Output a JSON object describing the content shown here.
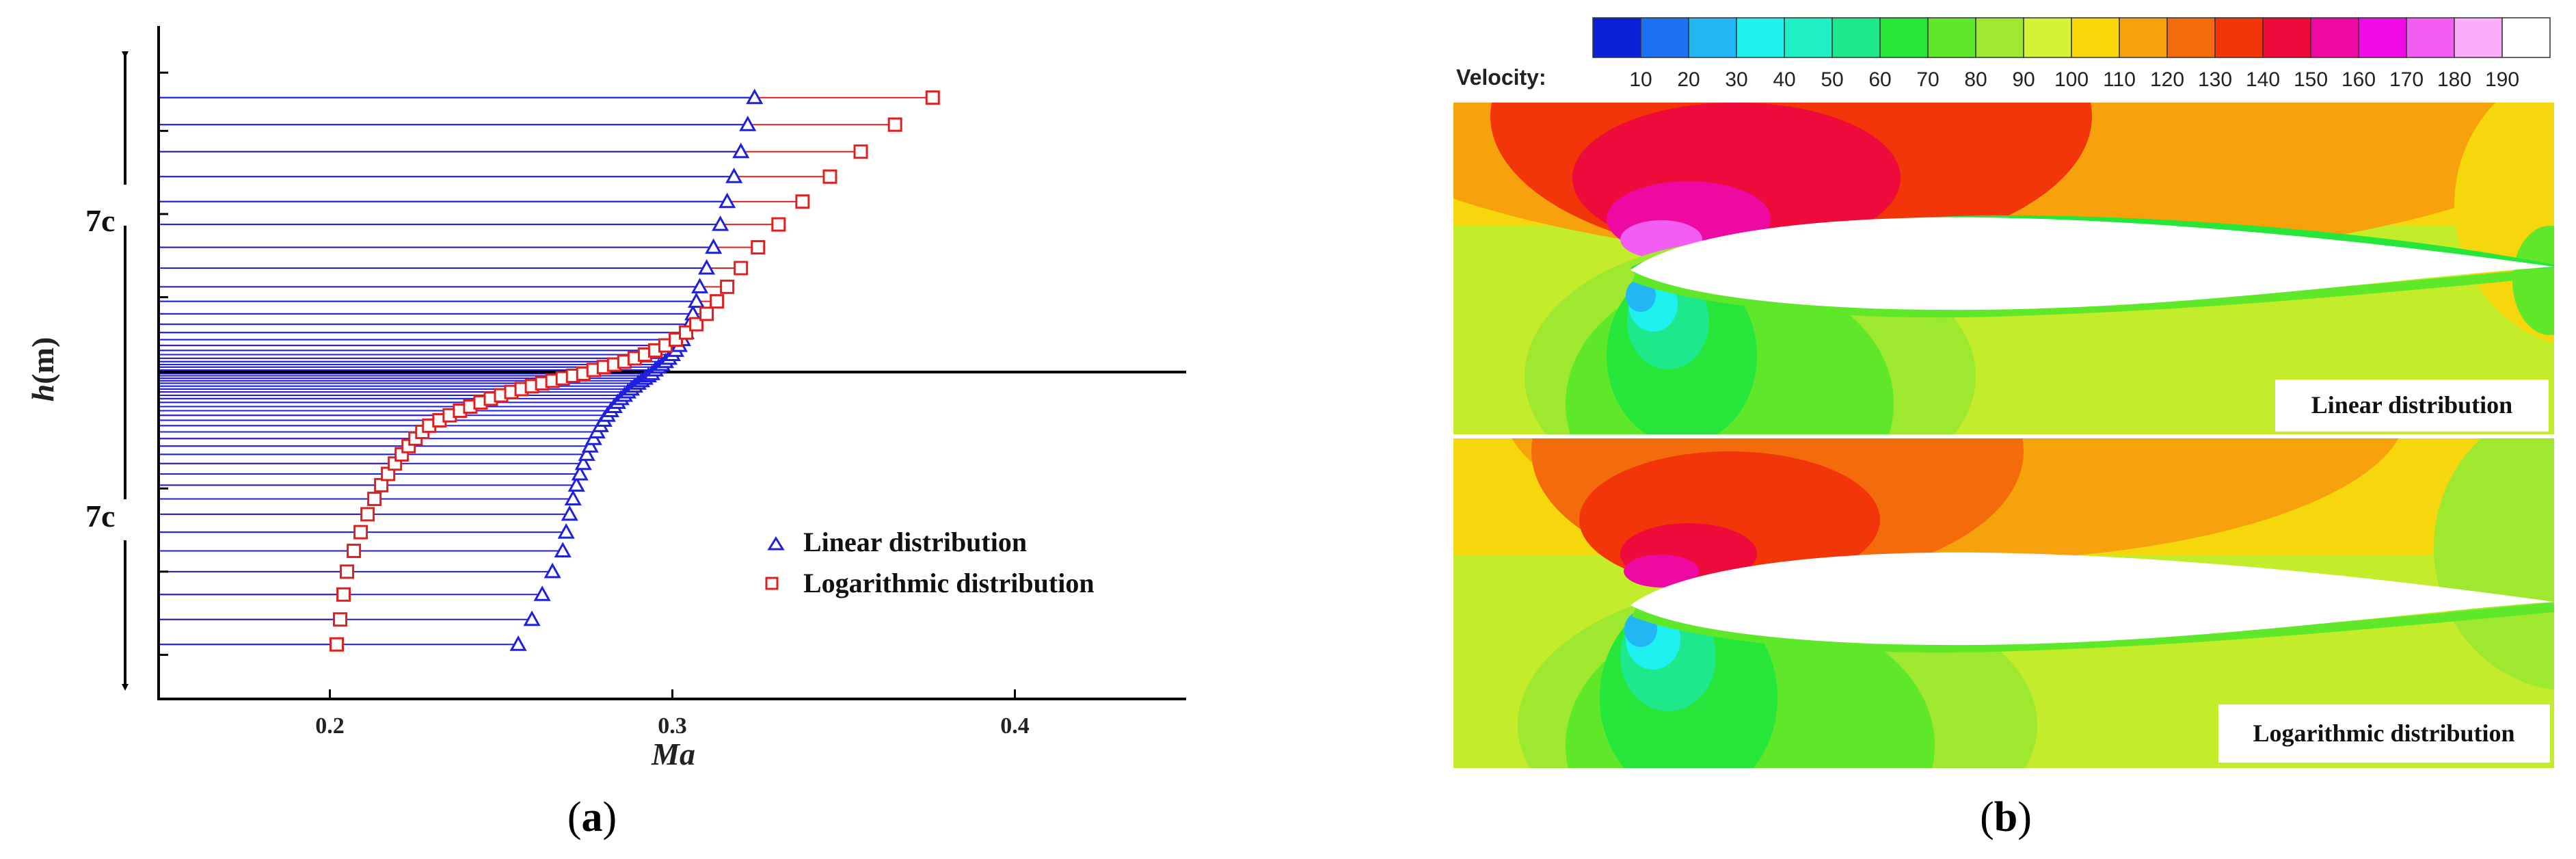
{
  "panel_a": {
    "label_open": "(",
    "label_letter": "a",
    "label_close": ")",
    "upper_span": "7c",
    "lower_span": "7c"
  },
  "panel_b": {
    "label_open": "(",
    "label_letter": "b",
    "label_close": ")",
    "colorbar_title": "Velocity:",
    "colorbar_ticks": [
      "10",
      "20",
      "30",
      "40",
      "50",
      "60",
      "70",
      "80",
      "90",
      "100",
      "110",
      "120",
      "130",
      "140",
      "150",
      "160",
      "170",
      "180",
      "190"
    ],
    "colorbar_colors": [
      "#0a1fd6",
      "#1c72f0",
      "#22b6f5",
      "#1ff0f0",
      "#1ef0c4",
      "#1ee88c",
      "#26e63a",
      "#5fe82a",
      "#9ee830",
      "#d4f236",
      "#f7d60a",
      "#f7a10c",
      "#f46b0c",
      "#f2360a",
      "#ee0a3a",
      "#ee0aa2",
      "#f00ae8",
      "#f25ef2",
      "#f8aef8",
      "#ffffff"
    ],
    "case_top": "Linear distribution",
    "case_bottom": "Logarithmic distribution"
  },
  "chart_data": {
    "type": "scatter",
    "title": "",
    "xlabel": "Ma",
    "ylabel_prefix": "h",
    "ylabel_unit": "(m)",
    "xlim": [
      0.15,
      0.45
    ],
    "ylim": [
      -7.5,
      7.5
    ],
    "xticks": [
      "0.2",
      "0.3",
      "0.4"
    ],
    "xtick_values": [
      0.2,
      0.3,
      0.4
    ],
    "legend_position": "lower-right",
    "series": [
      {
        "name": "Linear distribution",
        "marker": "triangle",
        "color": "#1f1fe0",
        "points": [
          [
            0.255,
            -6.55
          ],
          [
            0.259,
            -5.95
          ],
          [
            0.262,
            -5.35
          ],
          [
            0.265,
            -4.8
          ],
          [
            0.268,
            -4.3
          ],
          [
            0.269,
            -3.85
          ],
          [
            0.27,
            -3.42
          ],
          [
            0.271,
            -3.05
          ],
          [
            0.272,
            -2.72
          ],
          [
            0.273,
            -2.45
          ],
          [
            0.274,
            -2.2
          ],
          [
            0.275,
            -1.98
          ],
          [
            0.276,
            -1.78
          ],
          [
            0.277,
            -1.6
          ],
          [
            0.278,
            -1.44
          ],
          [
            0.279,
            -1.29
          ],
          [
            0.28,
            -1.16
          ],
          [
            0.281,
            -1.04
          ],
          [
            0.282,
            -0.93
          ],
          [
            0.283,
            -0.83
          ],
          [
            0.284,
            -0.73
          ],
          [
            0.285,
            -0.64
          ],
          [
            0.286,
            -0.56
          ],
          [
            0.287,
            -0.48
          ],
          [
            0.288,
            -0.41
          ],
          [
            0.289,
            -0.34
          ],
          [
            0.29,
            -0.27
          ],
          [
            0.291,
            -0.21
          ],
          [
            0.292,
            -0.15
          ],
          [
            0.293,
            -0.09
          ],
          [
            0.294,
            -0.04
          ],
          [
            0.295,
            0.05
          ],
          [
            0.296,
            0.12
          ],
          [
            0.297,
            0.18
          ],
          [
            0.298,
            0.25
          ],
          [
            0.299,
            0.33
          ],
          [
            0.3,
            0.42
          ],
          [
            0.301,
            0.52
          ],
          [
            0.302,
            0.64
          ],
          [
            0.303,
            0.78
          ],
          [
            0.304,
            0.95
          ],
          [
            0.305,
            1.15
          ],
          [
            0.306,
            1.4
          ],
          [
            0.307,
            1.7
          ],
          [
            0.308,
            2.05
          ],
          [
            0.31,
            2.5
          ],
          [
            0.312,
            3.0
          ],
          [
            0.314,
            3.55
          ],
          [
            0.316,
            4.1
          ],
          [
            0.318,
            4.7
          ],
          [
            0.32,
            5.3
          ],
          [
            0.322,
            5.95
          ],
          [
            0.324,
            6.6
          ]
        ]
      },
      {
        "name": "Logarithmic distribution",
        "marker": "square",
        "color": "#e01f1f",
        "points": [
          [
            0.202,
            -6.55
          ],
          [
            0.203,
            -5.95
          ],
          [
            0.204,
            -5.35
          ],
          [
            0.205,
            -4.8
          ],
          [
            0.207,
            -4.3
          ],
          [
            0.209,
            -3.85
          ],
          [
            0.211,
            -3.42
          ],
          [
            0.213,
            -3.05
          ],
          [
            0.215,
            -2.72
          ],
          [
            0.217,
            -2.45
          ],
          [
            0.219,
            -2.2
          ],
          [
            0.221,
            -1.98
          ],
          [
            0.223,
            -1.78
          ],
          [
            0.225,
            -1.6
          ],
          [
            0.227,
            -1.44
          ],
          [
            0.229,
            -1.29
          ],
          [
            0.232,
            -1.16
          ],
          [
            0.235,
            -1.04
          ],
          [
            0.238,
            -0.93
          ],
          [
            0.241,
            -0.83
          ],
          [
            0.244,
            -0.73
          ],
          [
            0.247,
            -0.64
          ],
          [
            0.25,
            -0.56
          ],
          [
            0.253,
            -0.48
          ],
          [
            0.256,
            -0.41
          ],
          [
            0.259,
            -0.34
          ],
          [
            0.262,
            -0.27
          ],
          [
            0.265,
            -0.21
          ],
          [
            0.268,
            -0.15
          ],
          [
            0.271,
            -0.09
          ],
          [
            0.274,
            -0.04
          ],
          [
            0.277,
            0.05
          ],
          [
            0.28,
            0.12
          ],
          [
            0.283,
            0.18
          ],
          [
            0.286,
            0.25
          ],
          [
            0.289,
            0.33
          ],
          [
            0.292,
            0.42
          ],
          [
            0.295,
            0.52
          ],
          [
            0.298,
            0.64
          ],
          [
            0.301,
            0.78
          ],
          [
            0.304,
            0.95
          ],
          [
            0.307,
            1.15
          ],
          [
            0.31,
            1.4
          ],
          [
            0.313,
            1.7
          ],
          [
            0.316,
            2.05
          ],
          [
            0.32,
            2.5
          ],
          [
            0.325,
            3.0
          ],
          [
            0.331,
            3.55
          ],
          [
            0.338,
            4.1
          ],
          [
            0.346,
            4.7
          ],
          [
            0.355,
            5.3
          ],
          [
            0.365,
            5.95
          ],
          [
            0.376,
            6.6
          ]
        ]
      }
    ]
  }
}
